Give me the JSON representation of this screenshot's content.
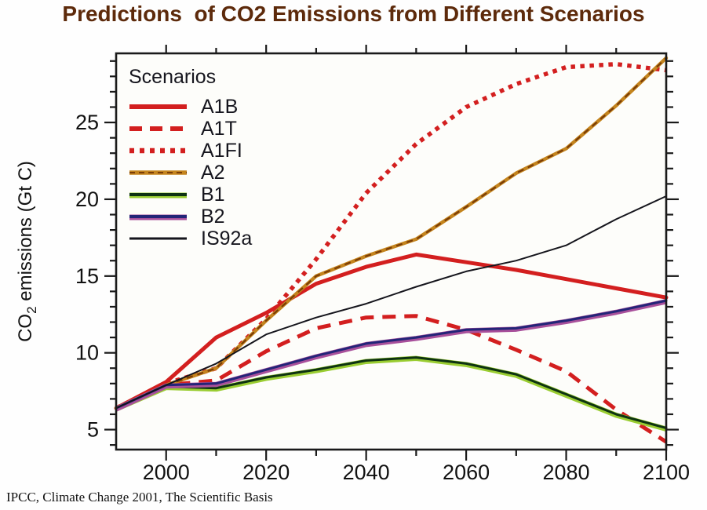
{
  "header": {
    "title": "Predictions  of CO2 Emissions from Different Scenarios",
    "title_color": "#5d2a0b"
  },
  "footer": {
    "source": "IPCC, Climate Change 2001, The Scientific Basis"
  },
  "chart_data": {
    "type": "line",
    "title": "Predictions  of CO2 Emissions from Different Scenarios",
    "xlabel": "",
    "ylabel": "CO2 emissions (Gt C)",
    "legend_title": "Scenarios",
    "legend_position": "top-left",
    "grid": false,
    "xlim": [
      1990,
      2100
    ],
    "ylim": [
      3.7,
      29.5
    ],
    "x_major_ticks": [
      2000,
      2020,
      2040,
      2060,
      2080,
      2100
    ],
    "x_minor_step": 10,
    "y_major_ticks": [
      5,
      10,
      15,
      20,
      25
    ],
    "y_minor_step": 1,
    "plot_bg": "#fdfdfa",
    "axis_color": "#1a1a1a",
    "x": [
      1990,
      2000,
      2010,
      2020,
      2030,
      2040,
      2050,
      2060,
      2070,
      2080,
      2090,
      2100
    ],
    "series": [
      {
        "name": "A1B",
        "color": "#d31f1f",
        "style": "solid",
        "width": 5,
        "values": [
          6.4,
          8.1,
          11.0,
          12.6,
          14.5,
          15.6,
          16.4,
          15.9,
          15.4,
          14.8,
          14.2,
          13.6
        ]
      },
      {
        "name": "A1T",
        "color": "#d31f1f",
        "style": "dashed",
        "width": 5,
        "values": [
          6.4,
          7.9,
          8.2,
          10.1,
          11.6,
          12.3,
          12.4,
          11.5,
          10.2,
          8.8,
          6.3,
          4.2
        ]
      },
      {
        "name": "A1FI",
        "color": "#d31f1f",
        "style": "dotted",
        "width": 5.5,
        "values": [
          6.4,
          8.0,
          9.0,
          12.2,
          16.1,
          20.4,
          23.6,
          26.0,
          27.5,
          28.6,
          28.8,
          28.4
        ]
      },
      {
        "name": "A2",
        "color": "#c4841d",
        "style": "solid",
        "width": 4.5,
        "overlay_color": "#7a3c06",
        "values": [
          6.4,
          7.9,
          9.0,
          12.1,
          15.0,
          16.3,
          17.4,
          19.5,
          21.7,
          23.3,
          26.1,
          29.2
        ]
      },
      {
        "name": "B1",
        "color": "#0e3312",
        "style": "solid",
        "width": 3,
        "fringe": "#9acd32",
        "values": [
          6.4,
          7.8,
          7.7,
          8.4,
          8.9,
          9.5,
          9.7,
          9.3,
          8.6,
          7.3,
          6.0,
          5.1
        ]
      },
      {
        "name": "B2",
        "color": "#232578",
        "style": "solid",
        "width": 3,
        "fringe": "#a8509b",
        "values": [
          6.4,
          7.9,
          8.0,
          8.9,
          9.8,
          10.6,
          11.0,
          11.5,
          11.6,
          12.1,
          12.7,
          13.4
        ]
      },
      {
        "name": "IS92a",
        "color": "#15151c",
        "style": "solid",
        "width": 2,
        "values": [
          6.4,
          7.9,
          9.3,
          11.2,
          12.3,
          13.2,
          14.3,
          15.3,
          16.0,
          17.0,
          18.7,
          20.2
        ]
      }
    ]
  }
}
